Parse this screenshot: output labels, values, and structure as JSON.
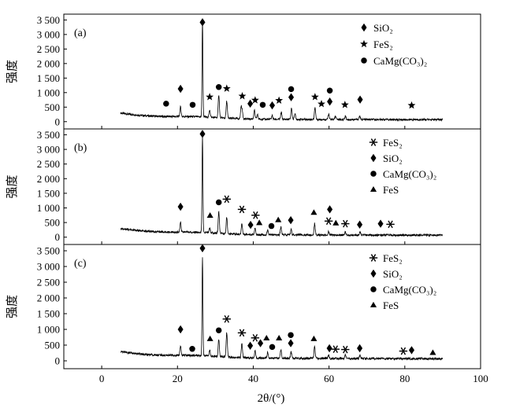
{
  "chart_data": [
    {
      "type": "line",
      "panel_label": "(a)",
      "ylabel": "强度",
      "xlabel": "2θ/(°)",
      "xlim": [
        -10,
        100
      ],
      "ylim": [
        -250,
        3700
      ],
      "yticks": [
        0,
        500,
        1000,
        1500,
        2000,
        2500,
        3000,
        3500
      ],
      "ytick_labels": [
        "0",
        "500",
        "1 000",
        "1 500",
        "2 000",
        "2 500",
        "3 000",
        "3 500"
      ],
      "legend": [
        {
          "marker": "diamond",
          "label": "SiO₂"
        },
        {
          "marker": "star",
          "label": "FeS₂"
        },
        {
          "marker": "circle",
          "label": "CaMg(CO₃)₂"
        }
      ],
      "peaks": [
        {
          "x": 20.8,
          "y": 330,
          "marker": "diamond"
        },
        {
          "x": 26.6,
          "y": 3330,
          "marker": "diamond"
        },
        {
          "x": 28.5,
          "y": 260,
          "marker": "star"
        },
        {
          "x": 30.9,
          "y": 800,
          "marker": "circle"
        },
        {
          "x": 33.0,
          "y": 590,
          "marker": "star"
        },
        {
          "x": 36.8,
          "y": 390,
          "marker": "diamond"
        },
        {
          "x": 37.1,
          "y": 250,
          "marker": "star"
        },
        {
          "x": 40.3,
          "y": 300,
          "marker": "star"
        },
        {
          "x": 41.1,
          "y": 160,
          "marker": "circle"
        },
        {
          "x": 45.0,
          "y": 130,
          "marker": "diamond"
        },
        {
          "x": 47.4,
          "y": 240,
          "marker": "star"
        },
        {
          "x": 50.1,
          "y": 390,
          "marker": "diamond"
        },
        {
          "x": 51.0,
          "y": 200,
          "marker": "circle"
        },
        {
          "x": 56.3,
          "y": 420,
          "marker": "star"
        },
        {
          "x": 59.9,
          "y": 180,
          "marker": "diamond"
        },
        {
          "x": 61.7,
          "y": 110,
          "marker": "star"
        },
        {
          "x": 64.3,
          "y": 120,
          "marker": "star"
        },
        {
          "x": 68.1,
          "y": 120,
          "marker": "diamond"
        }
      ],
      "markers": [
        {
          "x": 17.0,
          "y": 620,
          "marker": "circle"
        },
        {
          "x": 20.8,
          "y": 1130,
          "marker": "diamond"
        },
        {
          "x": 24.0,
          "y": 580,
          "marker": "circle"
        },
        {
          "x": 26.6,
          "y": 3420,
          "marker": "diamond"
        },
        {
          "x": 28.5,
          "y": 850,
          "marker": "star"
        },
        {
          "x": 30.9,
          "y": 1190,
          "marker": "circle"
        },
        {
          "x": 33.0,
          "y": 1140,
          "marker": "star"
        },
        {
          "x": 37.1,
          "y": 880,
          "marker": "star"
        },
        {
          "x": 39.2,
          "y": 620,
          "marker": "diamond"
        },
        {
          "x": 40.5,
          "y": 740,
          "marker": "star"
        },
        {
          "x": 42.5,
          "y": 580,
          "marker": "circle"
        },
        {
          "x": 45.0,
          "y": 560,
          "marker": "diamond"
        },
        {
          "x": 46.8,
          "y": 730,
          "marker": "star"
        },
        {
          "x": 50.0,
          "y": 1120,
          "marker": "circle"
        },
        {
          "x": 50.0,
          "y": 840,
          "marker": "diamond"
        },
        {
          "x": 56.3,
          "y": 850,
          "marker": "star"
        },
        {
          "x": 58.0,
          "y": 610,
          "marker": "star"
        },
        {
          "x": 60.2,
          "y": 1070,
          "marker": "circle"
        },
        {
          "x": 60.2,
          "y": 690,
          "marker": "diamond"
        },
        {
          "x": 64.2,
          "y": 580,
          "marker": "star"
        },
        {
          "x": 68.2,
          "y": 760,
          "marker": "diamond"
        },
        {
          "x": 81.8,
          "y": 560,
          "marker": "star"
        }
      ]
    },
    {
      "type": "line",
      "panel_label": "(b)",
      "ylabel": "强度",
      "xlabel": "2θ/(°)",
      "xlim": [
        -10,
        100
      ],
      "ylim": [
        -250,
        3700
      ],
      "yticks": [
        0,
        500,
        1000,
        1500,
        2000,
        2500,
        3000,
        3500
      ],
      "ytick_labels": [
        "0",
        "500",
        "1 000",
        "1 500",
        "2 000",
        "2 500",
        "3 000",
        "3 500"
      ],
      "legend": [
        {
          "marker": "asterisk",
          "label": "FeS₂"
        },
        {
          "marker": "diamond",
          "label": "SiO₂"
        },
        {
          "marker": "circle",
          "label": "CaMg(CO₃)₂"
        },
        {
          "marker": "triangle",
          "label": "FeS"
        }
      ],
      "peaks": [
        {
          "x": 20.8,
          "y": 320,
          "marker": "diamond"
        },
        {
          "x": 26.6,
          "y": 3320,
          "marker": "diamond"
        },
        {
          "x": 28.5,
          "y": 180,
          "marker": "triangle"
        },
        {
          "x": 30.9,
          "y": 740,
          "marker": "circle"
        },
        {
          "x": 33.0,
          "y": 560,
          "marker": "asterisk"
        },
        {
          "x": 37.0,
          "y": 350,
          "marker": "asterisk"
        },
        {
          "x": 40.5,
          "y": 230,
          "marker": "asterisk"
        },
        {
          "x": 43.8,
          "y": 160,
          "marker": "triangle"
        },
        {
          "x": 47.3,
          "y": 260,
          "marker": "asterisk"
        },
        {
          "x": 50.0,
          "y": 180,
          "marker": "diamond"
        },
        {
          "x": 56.2,
          "y": 390,
          "marker": "triangle"
        },
        {
          "x": 59.9,
          "y": 120,
          "marker": "asterisk"
        },
        {
          "x": 64.3,
          "y": 110,
          "marker": "asterisk"
        },
        {
          "x": 68.2,
          "y": 100,
          "marker": "diamond"
        }
      ],
      "markers": [
        {
          "x": 20.8,
          "y": 1040,
          "marker": "diamond"
        },
        {
          "x": 26.6,
          "y": 3530,
          "marker": "diamond"
        },
        {
          "x": 28.6,
          "y": 740,
          "marker": "triangle"
        },
        {
          "x": 30.9,
          "y": 1190,
          "marker": "circle"
        },
        {
          "x": 33.0,
          "y": 1300,
          "marker": "asterisk"
        },
        {
          "x": 37.0,
          "y": 950,
          "marker": "asterisk"
        },
        {
          "x": 39.3,
          "y": 420,
          "marker": "diamond"
        },
        {
          "x": 40.6,
          "y": 750,
          "marker": "asterisk"
        },
        {
          "x": 41.6,
          "y": 490,
          "marker": "triangle"
        },
        {
          "x": 44.8,
          "y": 380,
          "marker": "circle"
        },
        {
          "x": 46.6,
          "y": 590,
          "marker": "triangle"
        },
        {
          "x": 49.9,
          "y": 580,
          "marker": "diamond"
        },
        {
          "x": 56.0,
          "y": 840,
          "marker": "triangle"
        },
        {
          "x": 59.9,
          "y": 550,
          "marker": "asterisk"
        },
        {
          "x": 60.2,
          "y": 950,
          "marker": "diamond"
        },
        {
          "x": 61.8,
          "y": 480,
          "marker": "triangle"
        },
        {
          "x": 64.3,
          "y": 460,
          "marker": "asterisk"
        },
        {
          "x": 68.1,
          "y": 430,
          "marker": "diamond"
        },
        {
          "x": 73.6,
          "y": 460,
          "marker": "diamond"
        },
        {
          "x": 76.2,
          "y": 440,
          "marker": "asterisk"
        }
      ]
    },
    {
      "type": "line",
      "panel_label": "(c)",
      "ylabel": "强度",
      "xlabel": "2θ/(°)",
      "xlim": [
        -10,
        100
      ],
      "ylim": [
        -250,
        3700
      ],
      "yticks": [
        0,
        500,
        1000,
        1500,
        2000,
        2500,
        3000,
        3500
      ],
      "ytick_labels": [
        "0",
        "500",
        "1 000",
        "1 500",
        "2 000",
        "2 500",
        "3 000",
        "3 500"
      ],
      "xticks": [
        0,
        20,
        40,
        60,
        80,
        100
      ],
      "legend": [
        {
          "marker": "asterisk",
          "label": "FeS₂"
        },
        {
          "marker": "diamond",
          "label": "SiO₂"
        },
        {
          "marker": "circle",
          "label": "CaMg(CO₃)₂"
        },
        {
          "marker": "triangle",
          "label": "FeS"
        }
      ],
      "peaks": [
        {
          "x": 20.8,
          "y": 300,
          "marker": "diamond"
        },
        {
          "x": 26.6,
          "y": 3150,
          "marker": "diamond"
        },
        {
          "x": 28.5,
          "y": 200,
          "marker": "triangle"
        },
        {
          "x": 30.9,
          "y": 560,
          "marker": "circle"
        },
        {
          "x": 33.0,
          "y": 780,
          "marker": "asterisk"
        },
        {
          "x": 37.0,
          "y": 450,
          "marker": "asterisk"
        },
        {
          "x": 40.5,
          "y": 230,
          "marker": "asterisk"
        },
        {
          "x": 43.8,
          "y": 180,
          "marker": "triangle"
        },
        {
          "x": 47.3,
          "y": 280,
          "marker": "asterisk"
        },
        {
          "x": 50.0,
          "y": 200,
          "marker": "diamond"
        },
        {
          "x": 56.2,
          "y": 380,
          "marker": "triangle"
        },
        {
          "x": 59.9,
          "y": 120,
          "marker": "asterisk"
        },
        {
          "x": 64.3,
          "y": 120,
          "marker": "asterisk"
        },
        {
          "x": 68.2,
          "y": 110,
          "marker": "diamond"
        }
      ],
      "markers": [
        {
          "x": 20.8,
          "y": 1000,
          "marker": "diamond"
        },
        {
          "x": 23.9,
          "y": 380,
          "marker": "circle"
        },
        {
          "x": 26.6,
          "y": 3580,
          "marker": "diamond"
        },
        {
          "x": 28.6,
          "y": 700,
          "marker": "triangle"
        },
        {
          "x": 30.9,
          "y": 970,
          "marker": "circle"
        },
        {
          "x": 33.0,
          "y": 1330,
          "marker": "asterisk"
        },
        {
          "x": 37.0,
          "y": 890,
          "marker": "asterisk"
        },
        {
          "x": 39.2,
          "y": 480,
          "marker": "diamond"
        },
        {
          "x": 40.5,
          "y": 730,
          "marker": "asterisk"
        },
        {
          "x": 41.9,
          "y": 560,
          "marker": "diamond"
        },
        {
          "x": 43.5,
          "y": 720,
          "marker": "triangle"
        },
        {
          "x": 45.0,
          "y": 440,
          "marker": "circle"
        },
        {
          "x": 46.8,
          "y": 720,
          "marker": "triangle"
        },
        {
          "x": 49.9,
          "y": 820,
          "marker": "circle"
        },
        {
          "x": 49.9,
          "y": 560,
          "marker": "diamond"
        },
        {
          "x": 56.0,
          "y": 700,
          "marker": "triangle"
        },
        {
          "x": 60.1,
          "y": 400,
          "marker": "diamond"
        },
        {
          "x": 61.7,
          "y": 370,
          "marker": "asterisk"
        },
        {
          "x": 64.3,
          "y": 360,
          "marker": "asterisk"
        },
        {
          "x": 68.1,
          "y": 400,
          "marker": "diamond"
        },
        {
          "x": 79.6,
          "y": 310,
          "marker": "asterisk"
        },
        {
          "x": 81.8,
          "y": 340,
          "marker": "diamond"
        },
        {
          "x": 87.4,
          "y": 260,
          "marker": "triangle"
        }
      ]
    }
  ]
}
